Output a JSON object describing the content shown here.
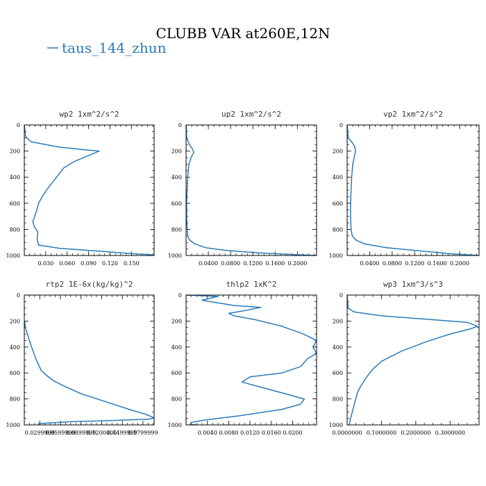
{
  "figure": {
    "title": "CLUBB VAR at260E,12N",
    "legend": {
      "label": "taus_144_zhun",
      "color": "#2a7ab9"
    }
  },
  "chart_data": [
    {
      "type": "line",
      "title": "wp2  1xm^2/s^2",
      "xlim": [
        0,
        0.1818
      ],
      "ylim": [
        0,
        1000
      ],
      "y_inverted": true,
      "xticks": [
        0.03,
        0.06,
        0.09,
        0.12,
        0.15
      ],
      "xtick_labels": [
        "0.030",
        "0.060",
        "0.090",
        "0.120",
        "0.150"
      ],
      "yticks": [
        0,
        200,
        400,
        600,
        800,
        1000
      ],
      "series": [
        {
          "color": "#2a7ab9",
          "x": [
            0.0,
            0.002,
            0.01,
            0.05,
            0.085,
            0.105,
            0.092,
            0.07,
            0.055,
            0.048,
            0.041,
            0.035,
            0.026,
            0.02,
            0.017,
            0.012,
            0.014,
            0.019,
            0.018,
            0.02,
            0.05,
            0.1,
            0.15,
            0.181
          ],
          "y": [
            0,
            90,
            130,
            170,
            190,
            200,
            230,
            280,
            330,
            380,
            430,
            470,
            540,
            600,
            660,
            740,
            780,
            820,
            880,
            920,
            945,
            965,
            985,
            995
          ]
        }
      ]
    },
    {
      "type": "line",
      "title": "up2  1xm^2/s^2",
      "xlim": [
        0,
        0.2345
      ],
      "ylim": [
        0,
        1000
      ],
      "y_inverted": true,
      "xticks": [
        0.04,
        0.08,
        0.12,
        0.16,
        0.2
      ],
      "xtick_labels": [
        "0.0400",
        "0.0800",
        "0.1200",
        "0.1600",
        "0.2000"
      ],
      "yticks": [
        0,
        200,
        400,
        600,
        800,
        1000
      ],
      "series": [
        {
          "color": "#2a7ab9",
          "x": [
            0.0,
            0.001,
            0.006,
            0.011,
            0.014,
            0.01,
            0.005,
            0.003,
            0.002,
            0.001,
            0.001,
            0.002,
            0.003,
            0.006,
            0.015,
            0.035,
            0.07,
            0.13,
            0.18,
            0.234
          ],
          "y": [
            0,
            100,
            150,
            180,
            210,
            240,
            300,
            400,
            500,
            600,
            700,
            800,
            850,
            880,
            910,
            940,
            960,
            980,
            990,
            1000
          ]
        }
      ]
    },
    {
      "type": "line",
      "title": "vp2  1xm^2/s^2",
      "xlim": [
        0,
        0.2345
      ],
      "ylim": [
        0,
        1000
      ],
      "y_inverted": true,
      "xticks": [
        0.04,
        0.08,
        0.12,
        0.16,
        0.2
      ],
      "xtick_labels": [
        "0.0400",
        "0.0800",
        "0.1200",
        "0.1600",
        "0.2000"
      ],
      "yticks": [
        0,
        200,
        400,
        600,
        800,
        1000
      ],
      "series": [
        {
          "color": "#2a7ab9",
          "x": [
            0.0,
            0.002,
            0.008,
            0.013,
            0.015,
            0.013,
            0.01,
            0.008,
            0.007,
            0.006,
            0.006,
            0.007,
            0.009,
            0.015,
            0.03,
            0.07,
            0.13,
            0.18,
            0.234
          ],
          "y": [
            0,
            100,
            130,
            160,
            200,
            240,
            300,
            400,
            500,
            600,
            700,
            800,
            850,
            880,
            910,
            940,
            965,
            985,
            1000
          ]
        }
      ]
    },
    {
      "type": "line",
      "title": "rtp2  1E-6x(kg/kg)^2",
      "xlim": [
        0.0075,
        0.1963
      ],
      "ylim": [
        0,
        1000
      ],
      "y_inverted": true,
      "xticks": [
        0.03,
        0.06,
        0.09,
        0.12,
        0.15,
        0.18
      ],
      "xtick_labels": [
        "0.0299999",
        "0.0599999",
        "0.0899999",
        "0.1200000",
        "0.1499999",
        "0.1799999"
      ],
      "yticks": [
        0,
        200,
        400,
        600,
        800,
        1000
      ],
      "series": [
        {
          "color": "#2a7ab9",
          "x": [
            0.008,
            0.009,
            0.012,
            0.018,
            0.025,
            0.032,
            0.04,
            0.05,
            0.065,
            0.09,
            0.125,
            0.16,
            0.185,
            0.196,
            0.19,
            0.14,
            0.08,
            0.028,
            0.03
          ],
          "y": [
            200,
            250,
            300,
            400,
            500,
            580,
            620,
            660,
            700,
            760,
            820,
            880,
            920,
            945,
            955,
            965,
            975,
            990,
            998
          ]
        }
      ]
    },
    {
      "type": "line",
      "title": "thlp2  1xK^2",
      "xlim": [
        0,
        0.0245
      ],
      "ylim": [
        0,
        1000
      ],
      "y_inverted": true,
      "xticks": [
        0.004,
        0.008,
        0.012,
        0.016,
        0.02
      ],
      "xtick_labels": [
        "0.0040",
        "0.0080",
        "0.0120",
        "0.0160",
        "0.0200"
      ],
      "yticks": [
        0,
        200,
        400,
        600,
        800,
        1000
      ],
      "series": [
        {
          "color": "#2a7ab9",
          "x": [
            0.0,
            0.006,
            0.003,
            0.009,
            0.014,
            0.011,
            0.008,
            0.009,
            0.013,
            0.018,
            0.022,
            0.0245,
            0.0238,
            0.0245,
            0.0228,
            0.0215,
            0.018,
            0.012,
            0.0105,
            0.015,
            0.0195,
            0.0222,
            0.0215,
            0.018,
            0.01,
            0.004,
            0.001,
            0.0008,
            0.002
          ],
          "y": [
            0,
            10,
            40,
            80,
            95,
            120,
            140,
            160,
            190,
            240,
            300,
            350,
            400,
            450,
            490,
            550,
            600,
            630,
            670,
            720,
            770,
            800,
            840,
            880,
            930,
            960,
            980,
            995,
            1000
          ]
        }
      ]
    },
    {
      "type": "line",
      "title": "wp3  1xm^3/s^3",
      "xlim": [
        0,
        0.3845
      ],
      "ylim": [
        0,
        1000
      ],
      "y_inverted": true,
      "xticks": [
        0.0,
        0.1,
        0.2,
        0.3
      ],
      "xtick_labels": [
        "0.0000000",
        "0.1000000",
        "0.2000000",
        "0.3000000"
      ],
      "yticks": [
        0,
        200,
        400,
        600,
        800,
        1000
      ],
      "series": [
        {
          "color": "#2a7ab9",
          "x": [
            0.0,
            0.003,
            0.02,
            0.1,
            0.25,
            0.35,
            0.38,
            0.36,
            0.3,
            0.23,
            0.16,
            0.1,
            0.075,
            0.06,
            0.05,
            0.04,
            0.03,
            0.025,
            0.02,
            0.015,
            0.01,
            0.006
          ],
          "y": [
            0,
            100,
            130,
            160,
            190,
            210,
            240,
            260,
            300,
            360,
            430,
            510,
            570,
            620,
            660,
            700,
            750,
            800,
            850,
            900,
            950,
            1000
          ]
        }
      ]
    }
  ]
}
